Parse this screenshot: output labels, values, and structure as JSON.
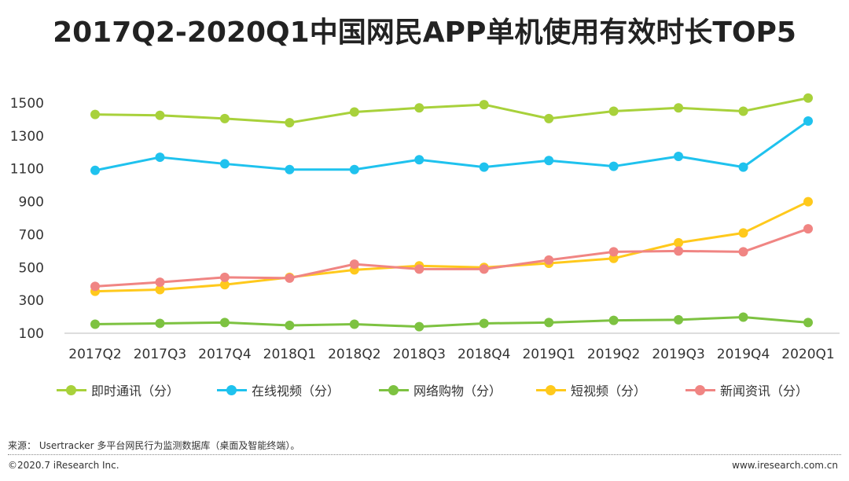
{
  "title": "2017Q2-2020Q1中国网民APP单机使用有效时长TOP5",
  "source_note": "来源： Usertracker 多平台网民行为监测数据库（桌面及智能终端）。",
  "copyright": "©2020.7 iResearch Inc.",
  "website": "www.iresearch.com.cn",
  "chart_data": {
    "type": "line",
    "categories": [
      "2017Q2",
      "2017Q3",
      "2017Q4",
      "2018Q1",
      "2018Q2",
      "2018Q3",
      "2018Q4",
      "2019Q1",
      "2019Q2",
      "2019Q3",
      "2019Q4",
      "2020Q1"
    ],
    "ylim": [
      100,
      1500
    ],
    "yticks": [
      100,
      300,
      500,
      700,
      900,
      1100,
      1300,
      1500
    ],
    "grid": false,
    "legend_position": "bottom",
    "series": [
      {
        "name": "即时通讯（分）",
        "color": "#a8d13b",
        "values": [
          1430,
          1425,
          1405,
          1380,
          1445,
          1470,
          1490,
          1405,
          1450,
          1470,
          1450,
          1530
        ]
      },
      {
        "name": "在线视频（分）",
        "color": "#1fc2ee",
        "values": [
          1090,
          1170,
          1130,
          1095,
          1095,
          1155,
          1110,
          1150,
          1115,
          1175,
          1110,
          1390
        ]
      },
      {
        "name": "网络购物（分）",
        "color": "#7dc241",
        "values": [
          155,
          160,
          165,
          148,
          155,
          140,
          160,
          165,
          178,
          182,
          198,
          165
        ]
      },
      {
        "name": "短视频（分）",
        "color": "#ffc91c",
        "values": [
          355,
          365,
          395,
          440,
          485,
          510,
          500,
          525,
          555,
          650,
          710,
          900
        ]
      },
      {
        "name": "新闻资讯（分）",
        "color": "#f08583",
        "values": [
          385,
          410,
          440,
          435,
          520,
          490,
          490,
          545,
          595,
          600,
          595,
          735
        ]
      }
    ]
  }
}
